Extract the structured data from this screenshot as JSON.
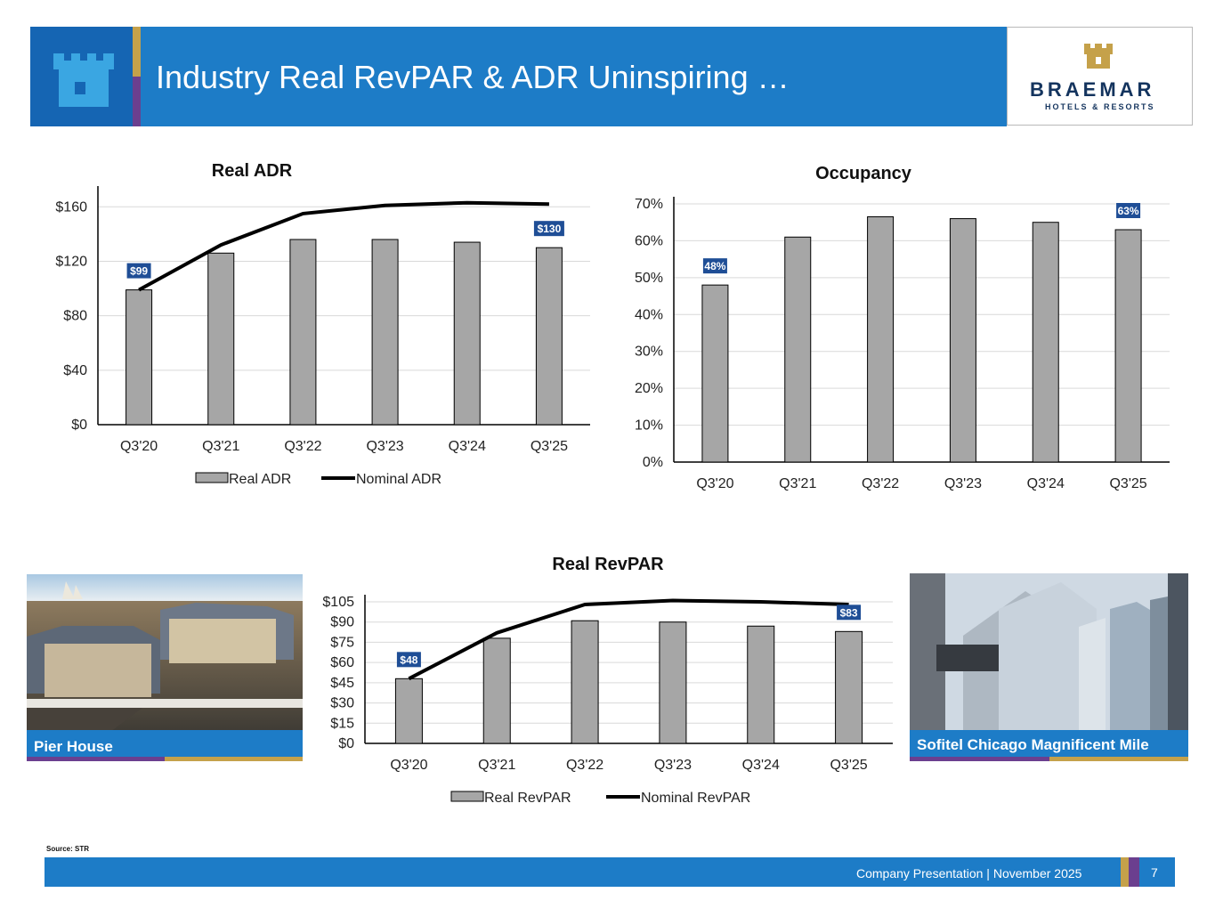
{
  "header": {
    "title": "Industry Real RevPAR & ADR Uninspiring …",
    "brand_name": "BRAEMAR",
    "brand_sub": "HOTELS & RESORTS"
  },
  "chart_data": [
    {
      "id": "adr",
      "type": "bar",
      "title": "Real ADR",
      "categories": [
        "Q3'20",
        "Q3'21",
        "Q3'22",
        "Q3'23",
        "Q3'24",
        "Q3'25"
      ],
      "series": [
        {
          "name": "Real ADR",
          "kind": "bar",
          "values": [
            99,
            126,
            136,
            136,
            134,
            130
          ]
        },
        {
          "name": "Nominal ADR",
          "kind": "line",
          "values": [
            99,
            132,
            155,
            161,
            163,
            162
          ]
        }
      ],
      "ylim": [
        0,
        170
      ],
      "ticks": [
        0,
        40,
        80,
        120,
        160
      ],
      "tick_labels": [
        "$0",
        "$40",
        "$80",
        "$120",
        "$160"
      ],
      "data_labels": [
        {
          "index": 0,
          "text": "$99"
        },
        {
          "index": 5,
          "text": "$130"
        }
      ],
      "legend": "bottom"
    },
    {
      "id": "occ",
      "type": "bar",
      "title": "Occupancy",
      "categories": [
        "Q3'20",
        "Q3'21",
        "Q3'22",
        "Q3'23",
        "Q3'24",
        "Q3'25"
      ],
      "series": [
        {
          "name": "Occupancy",
          "kind": "bar",
          "values": [
            48,
            61,
            66.5,
            66,
            65,
            63
          ]
        }
      ],
      "ylim": [
        0,
        70
      ],
      "ticks": [
        0,
        10,
        20,
        30,
        40,
        50,
        60,
        70
      ],
      "tick_labels": [
        "0%",
        "10%",
        "20%",
        "30%",
        "40%",
        "50%",
        "60%",
        "70%"
      ],
      "data_labels": [
        {
          "index": 0,
          "text": "48%"
        },
        {
          "index": 5,
          "text": "63%"
        }
      ],
      "legend": "none"
    },
    {
      "id": "revpar",
      "type": "bar",
      "title": "Real RevPAR",
      "categories": [
        "Q3'20",
        "Q3'21",
        "Q3'22",
        "Q3'23",
        "Q3'24",
        "Q3'25"
      ],
      "series": [
        {
          "name": "Real RevPAR",
          "kind": "bar",
          "values": [
            48,
            78,
            91,
            90,
            87,
            83
          ]
        },
        {
          "name": "Nominal RevPAR",
          "kind": "line",
          "values": [
            48,
            82,
            103,
            106,
            105,
            103
          ]
        }
      ],
      "ylim": [
        0,
        105
      ],
      "ticks": [
        0,
        15,
        30,
        45,
        60,
        75,
        90,
        105
      ],
      "tick_labels": [
        "$0",
        "$15",
        "$30",
        "$45",
        "$60",
        "$75",
        "$90",
        "$105"
      ],
      "data_labels": [
        {
          "index": 0,
          "text": "$48"
        },
        {
          "index": 5,
          "text": "$83"
        }
      ],
      "legend": "bottom"
    }
  ],
  "photos": {
    "left_caption": "Pier House",
    "right_caption": "Sofitel Chicago Magnificent Mile"
  },
  "source": "Source: STR",
  "footer": {
    "text": "Company Presentation | November 2025",
    "page": "7"
  },
  "colors": {
    "primary_blue": "#1d7cc7",
    "dark_blue": "#1565b3",
    "label_blue": "#1f4e96",
    "gold": "#c5a14a",
    "purple": "#6b3f8f",
    "bar_gray": "#a6a6a6",
    "line_black": "#000000"
  }
}
